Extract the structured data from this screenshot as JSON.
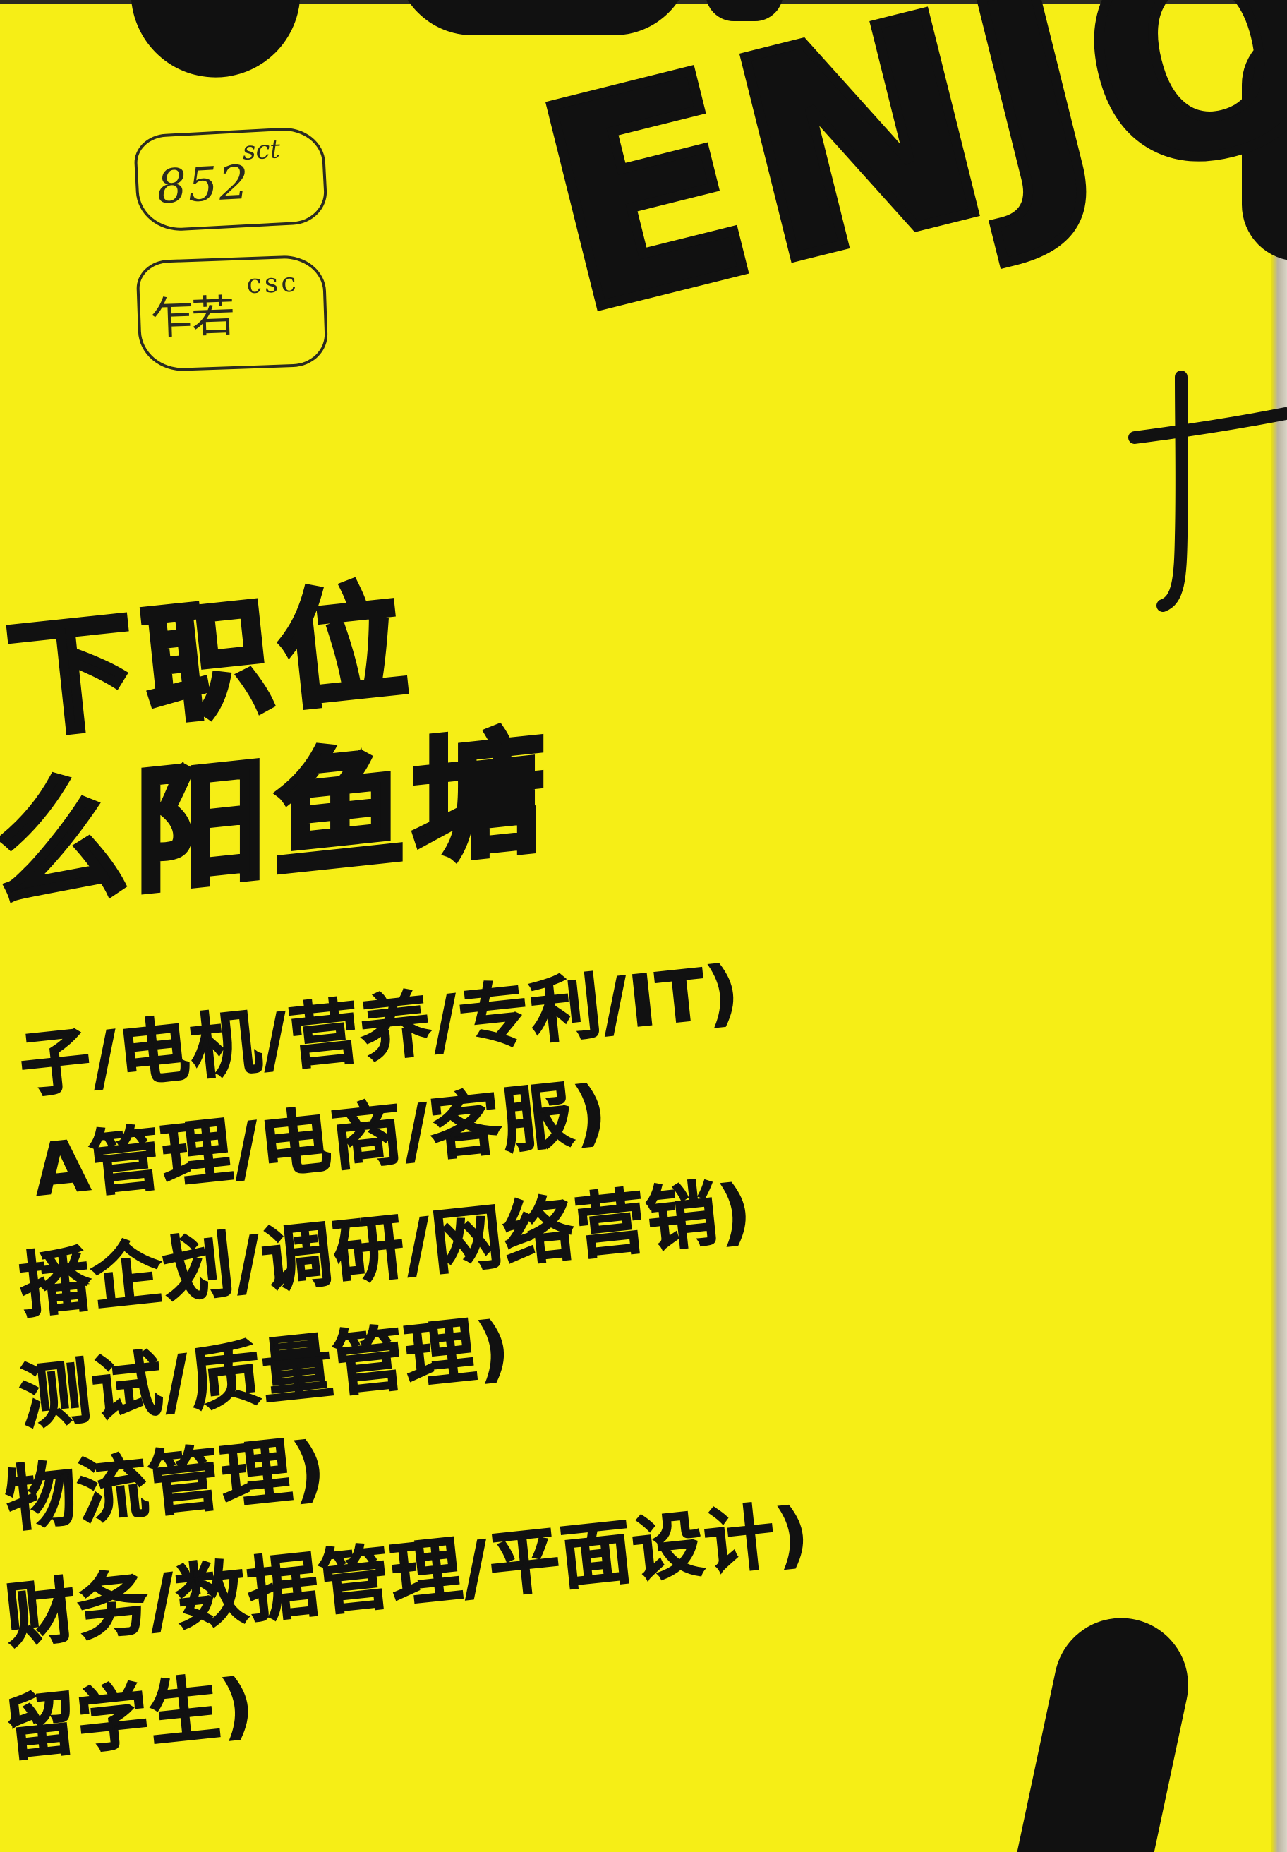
{
  "poster": {
    "background_color": "#f6ee16",
    "ink_color": "#111111",
    "big_word": "ENJO",
    "headline_line_1": "下职位",
    "headline_line_2": "么阳鱼塘",
    "job_lines": [
      "子/电机/营养/专利/IT)",
      "A管理/电商/客服)",
      "播企划/调研/网络营销)",
      "测试/质量管理)",
      "物流管理)",
      "财务/数据管理/平面设计)",
      "留学生)"
    ]
  },
  "handwritten_tags": [
    {
      "main": "852",
      "sup": "sct"
    },
    {
      "main": "乍若",
      "sup": "csc"
    }
  ]
}
